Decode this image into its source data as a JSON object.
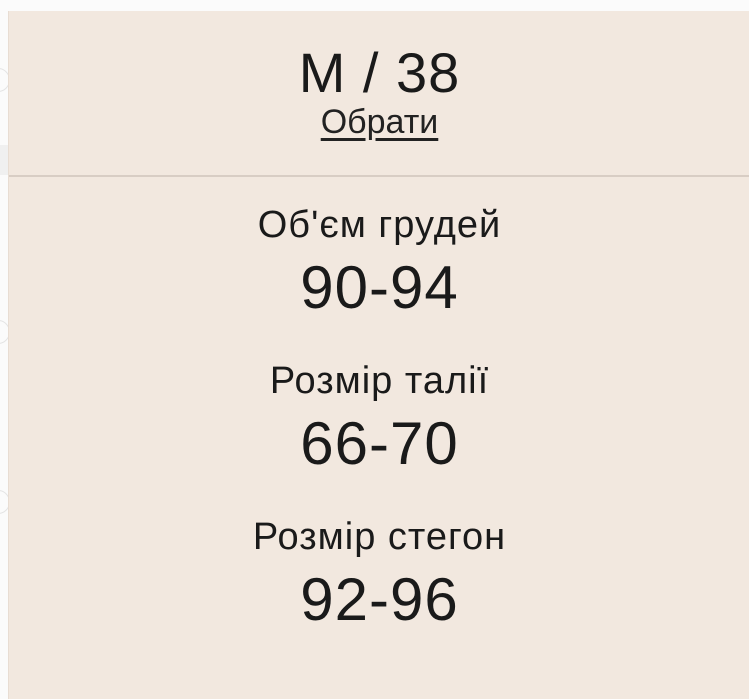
{
  "size": {
    "title": "M / 38",
    "choose_label": "Обрати"
  },
  "measurements": [
    {
      "label": "Об'єм грудей",
      "value": "90-94"
    },
    {
      "label": "Розмір талії",
      "value": "66-70"
    },
    {
      "label": "Розмір стегон",
      "value": "92-96"
    }
  ],
  "colors": {
    "panel_background": "#f2e8df",
    "divider": "#d8cdc4"
  }
}
